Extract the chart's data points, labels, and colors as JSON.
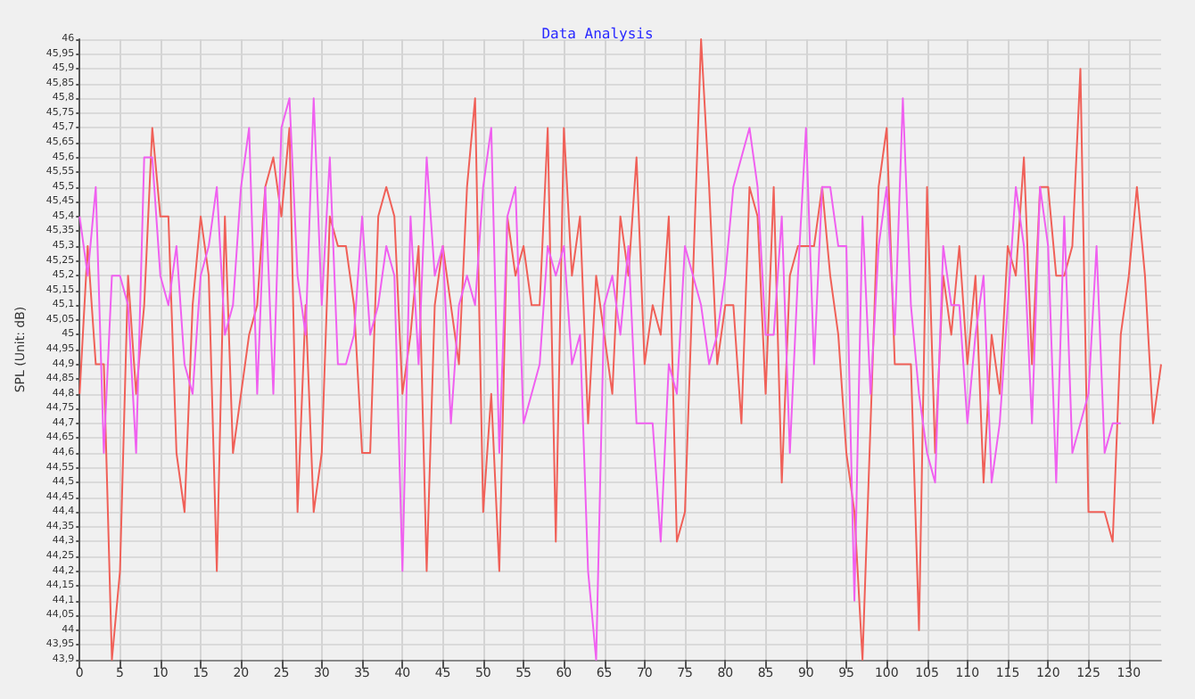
{
  "chart_data": {
    "type": "line",
    "title": "Data Analysis",
    "ylabel": "SPL (Unit: dB)",
    "x": [
      0,
      1,
      2,
      3,
      4,
      5,
      6,
      7,
      8,
      9,
      10,
      11,
      12,
      13,
      14,
      15,
      16,
      17,
      18,
      19,
      20,
      21,
      22,
      23,
      24,
      25,
      26,
      27,
      28,
      29,
      30,
      31,
      32,
      33,
      34,
      35,
      36,
      37,
      38,
      39,
      40,
      41,
      42,
      43,
      44,
      45,
      46,
      47,
      48,
      49,
      50,
      51,
      52,
      53,
      54,
      55,
      56,
      57,
      58,
      59,
      60,
      61,
      62,
      63,
      64,
      65,
      66,
      67,
      68,
      69,
      70,
      71,
      72,
      73,
      74,
      75,
      76,
      77,
      78,
      79,
      80,
      81,
      82,
      83,
      84,
      85,
      86,
      87,
      88,
      89,
      90,
      91,
      92,
      93,
      94,
      95,
      96,
      97,
      98,
      99,
      100,
      101,
      102,
      103,
      104,
      105,
      106,
      107,
      108,
      109,
      110,
      111,
      112,
      113,
      114,
      115,
      116,
      117,
      118,
      119,
      120,
      121,
      122,
      123,
      124,
      125,
      126,
      127,
      128,
      129,
      130,
      131,
      132,
      133,
      134
    ],
    "series": [
      {
        "color": "#f06058",
        "values": [
          44.8,
          45.3,
          44.9,
          44.9,
          43.9,
          44.2,
          45.2,
          44.8,
          45.1,
          45.7,
          45.4,
          45.4,
          44.6,
          44.4,
          45.1,
          45.4,
          45.2,
          44.2,
          45.4,
          44.6,
          44.8,
          45.0,
          45.1,
          45.5,
          45.6,
          45.4,
          45.7,
          44.4,
          45.1,
          44.4,
          44.6,
          45.4,
          45.3,
          45.3,
          45.1,
          44.6,
          44.6,
          45.4,
          45.5,
          45.4,
          44.8,
          45.0,
          45.3,
          44.2,
          45.1,
          45.3,
          45.1,
          44.9,
          45.5,
          45.8,
          44.4,
          44.8,
          44.2,
          45.4,
          45.2,
          45.3,
          45.1,
          45.1,
          45.7,
          44.3,
          45.7,
          45.2,
          45.4,
          44.7,
          45.2,
          45.0,
          44.8,
          45.4,
          45.2,
          45.6,
          44.9,
          45.1,
          45.0,
          45.4,
          44.3,
          44.4,
          45.2,
          46.0,
          45.5,
          44.9,
          45.1,
          45.1,
          44.7,
          45.5,
          45.4,
          44.8,
          45.5,
          44.5,
          45.2,
          45.3,
          45.3,
          45.3,
          45.5,
          45.2,
          45.0,
          44.6,
          44.4,
          43.9,
          44.7,
          45.5,
          45.7,
          44.9,
          44.9,
          44.9,
          44.0,
          45.5,
          44.6,
          45.2,
          45.0,
          45.3,
          44.9,
          45.2,
          44.5,
          45.0,
          44.8,
          45.3,
          45.2,
          45.6,
          44.9,
          45.5,
          45.5,
          45.2,
          45.2,
          45.3,
          45.9,
          44.4,
          44.4,
          44.4,
          44.3,
          45.0,
          45.2,
          45.5,
          45.2,
          44.7,
          44.9
        ]
      },
      {
        "color": "#f060f0",
        "values": [
          45.4,
          45.2,
          45.5,
          44.6,
          45.2,
          45.2,
          45.1,
          44.6,
          45.6,
          45.6,
          45.2,
          45.1,
          45.3,
          44.9,
          44.8,
          45.2,
          45.3,
          45.5,
          45.0,
          45.1,
          45.5,
          45.7,
          44.8,
          45.5,
          44.8,
          45.7,
          45.8,
          45.2,
          45.0,
          45.8,
          45.1,
          45.6,
          44.9,
          44.9,
          45.0,
          45.4,
          45.0,
          45.1,
          45.3,
          45.2,
          44.2,
          45.4,
          44.9,
          45.6,
          45.2,
          45.3,
          44.7,
          45.1,
          45.2,
          45.1,
          45.5,
          45.7,
          44.6,
          45.4,
          45.5,
          44.7,
          44.8,
          44.9,
          45.3,
          45.2,
          45.3,
          44.9,
          45.0,
          44.2,
          43.9,
          45.1,
          45.2,
          45.0,
          45.3,
          44.7,
          44.7,
          44.7,
          44.3,
          44.9,
          44.8,
          45.3,
          45.2,
          45.1,
          44.9,
          45.0,
          45.2,
          45.5,
          45.6,
          45.7,
          45.5,
          45.0,
          45.0,
          45.4,
          44.6,
          45.2,
          45.7,
          44.9,
          45.5,
          45.5,
          45.3,
          45.3,
          44.1,
          45.4,
          44.8,
          45.3,
          45.5,
          45.0,
          45.8,
          45.1,
          44.8,
          44.6,
          44.5,
          45.3,
          45.1,
          45.1,
          44.7,
          45.0,
          45.2,
          44.5,
          44.7,
          45.1,
          45.5,
          45.3,
          44.7,
          45.5,
          45.3,
          44.5,
          45.4,
          44.6,
          44.7,
          44.8,
          45.3,
          44.6,
          44.7,
          44.7,
          null,
          null,
          null,
          null,
          null
        ]
      }
    ],
    "xlim": [
      0,
      134
    ],
    "xticks": [
      0,
      5,
      10,
      15,
      20,
      25,
      30,
      35,
      40,
      45,
      50,
      55,
      60,
      65,
      70,
      75,
      80,
      85,
      90,
      95,
      100,
      105,
      110,
      115,
      120,
      125,
      130
    ],
    "ylim": [
      43.9,
      46
    ],
    "yticks": [
      {
        "value": 43.9,
        "label": "43,9"
      },
      {
        "value": 43.95,
        "label": "43,95"
      },
      44,
      {
        "value": 44.05,
        "label": "44,05"
      },
      {
        "value": 44.1,
        "label": "44,1"
      },
      {
        "value": 44.15,
        "label": "44,15"
      },
      {
        "value": 44.2,
        "label": "44,2"
      },
      {
        "value": 44.25,
        "label": "44,25"
      },
      {
        "value": 44.3,
        "label": "44,3"
      },
      {
        "value": 44.35,
        "label": "44,35"
      },
      {
        "value": 44.4,
        "label": "44,4"
      },
      {
        "value": 44.45,
        "label": "44,45"
      },
      {
        "value": 44.5,
        "label": "44,5"
      },
      {
        "value": 44.55,
        "label": "44,55"
      },
      {
        "value": 44.6,
        "label": "44,6"
      },
      {
        "value": 44.65,
        "label": "44,65"
      },
      {
        "value": 44.7,
        "label": "44,7"
      },
      {
        "value": 44.75,
        "label": "44,75"
      },
      {
        "value": 44.8,
        "label": "44,8"
      },
      {
        "value": 44.85,
        "label": "44,85"
      },
      {
        "value": 44.9,
        "label": "44,9"
      },
      {
        "value": 44.95,
        "label": "44,95"
      },
      45,
      {
        "value": 45.05,
        "label": "45,05"
      },
      {
        "value": 45.1,
        "label": "45,1"
      },
      {
        "value": 45.15,
        "label": "45,15"
      },
      {
        "value": 45.2,
        "label": "45,2"
      },
      {
        "value": 45.25,
        "label": "45,25"
      },
      {
        "value": 45.3,
        "label": "45,3"
      },
      {
        "value": 45.35,
        "label": "45,35"
      },
      {
        "value": 45.4,
        "label": "45,4"
      },
      {
        "value": 45.45,
        "label": "45,45"
      },
      {
        "value": 45.5,
        "label": "45,5"
      },
      {
        "value": 45.55,
        "label": "45,55"
      },
      {
        "value": 45.6,
        "label": "45,6"
      },
      {
        "value": 45.65,
        "label": "45,65"
      },
      {
        "value": 45.7,
        "label": "45,7"
      },
      {
        "value": 45.75,
        "label": "45,75"
      },
      {
        "value": 45.8,
        "label": "45,8"
      },
      {
        "value": 45.85,
        "label": "45,85"
      },
      {
        "value": 45.9,
        "label": "45,9"
      },
      {
        "value": 45.95,
        "label": "45,95"
      },
      46
    ],
    "grid": true,
    "marker": "none",
    "line_style": "solid"
  }
}
